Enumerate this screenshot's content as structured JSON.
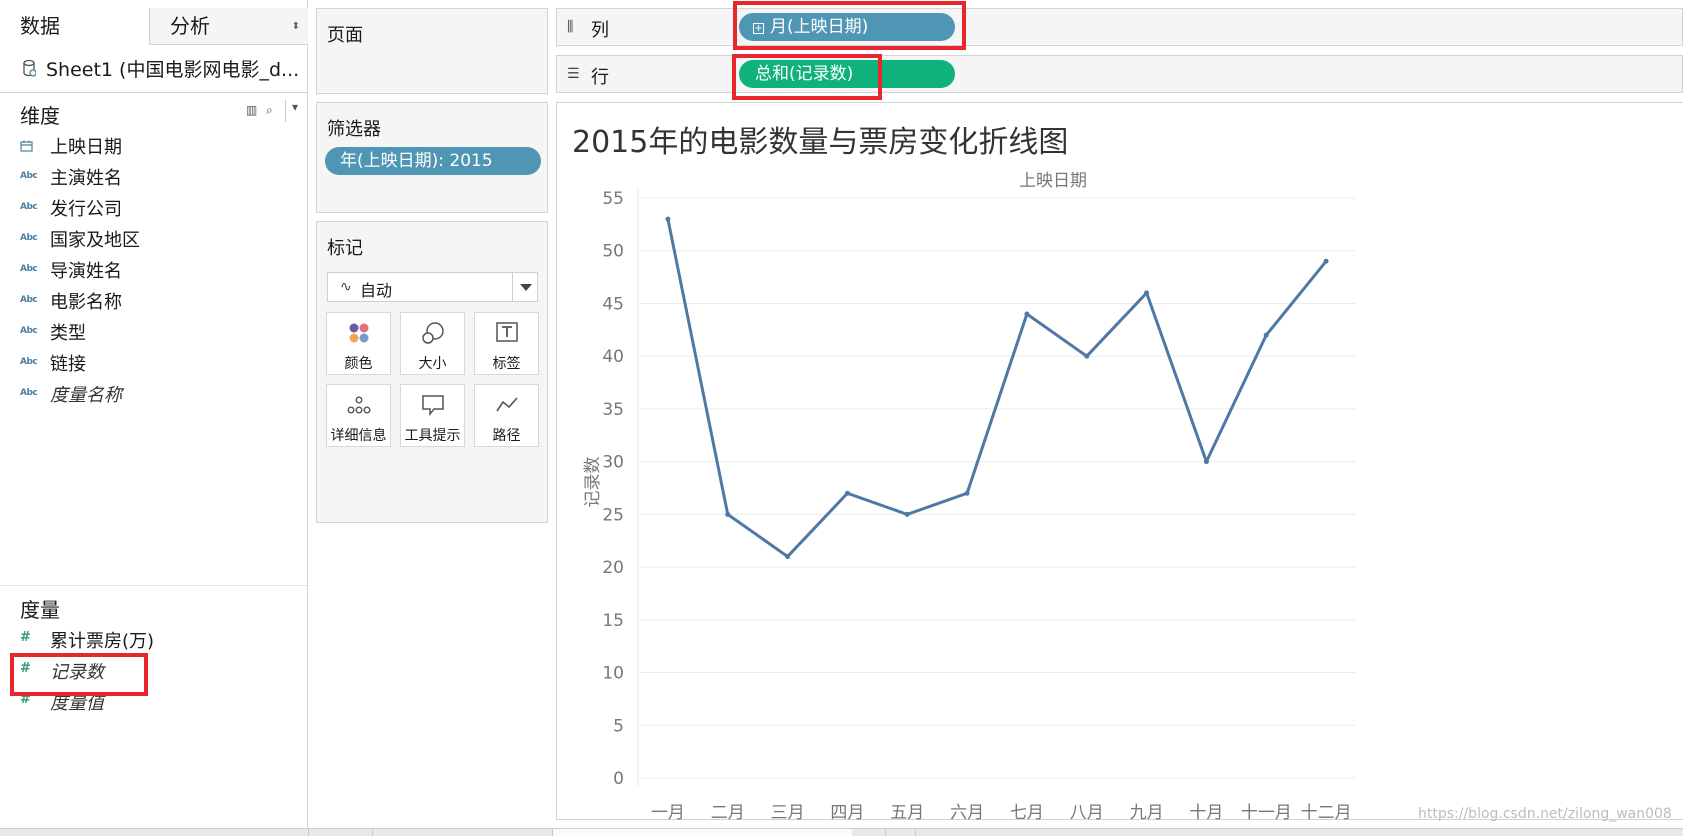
{
  "left_pane": {
    "tabs": {
      "data": "数据",
      "analysis": "分析"
    },
    "datasource": "Sheet1 (中国电影网电影_d...",
    "dimensions": {
      "title": "维度",
      "fields": [
        {
          "type_icon": "calendar-icon",
          "label": "上映日期",
          "italic": false
        },
        {
          "type_icon": "Abc",
          "label": "主演姓名",
          "italic": false
        },
        {
          "type_icon": "Abc",
          "label": "发行公司",
          "italic": false
        },
        {
          "type_icon": "Abc",
          "label": "国家及地区",
          "italic": false
        },
        {
          "type_icon": "Abc",
          "label": "导演姓名",
          "italic": false
        },
        {
          "type_icon": "Abc",
          "label": "电影名称",
          "italic": false
        },
        {
          "type_icon": "Abc",
          "label": "类型",
          "italic": false
        },
        {
          "type_icon": "Abc",
          "label": "链接",
          "italic": false
        },
        {
          "type_icon": "Abc",
          "label": "度量名称",
          "italic": true
        }
      ]
    },
    "measures": {
      "title": "度量",
      "fields": [
        {
          "type_icon": "#",
          "label": "累计票房(万)",
          "italic": false
        },
        {
          "type_icon": "#",
          "label": "记录数",
          "italic": true
        },
        {
          "type_icon": "#",
          "label": "度量值",
          "italic": true
        }
      ]
    }
  },
  "pages_card": {
    "title": "页面"
  },
  "filters_card": {
    "title": "筛选器",
    "pill": "年(上映日期): 2015"
  },
  "marks_card": {
    "title": "标记",
    "mark_type": "自动",
    "buttons": [
      {
        "label": "颜色",
        "icon": "color-icon"
      },
      {
        "label": "大小",
        "icon": "size-icon"
      },
      {
        "label": "标签",
        "icon": "label-icon"
      },
      {
        "label": "详细信息",
        "icon": "detail-icon"
      },
      {
        "label": "工具提示",
        "icon": "tooltip-icon"
      },
      {
        "label": "路径",
        "icon": "path-icon"
      }
    ]
  },
  "shelves": {
    "columns": {
      "label": "列",
      "icon": "columns-icon",
      "pill": "月(上映日期)",
      "pill_color": "#4e96b4"
    },
    "rows": {
      "label": "行",
      "icon": "rows-icon",
      "pill": "总和(记录数)",
      "pill_color": "#0fb27a"
    }
  },
  "highlight_color": "#e8262e",
  "chart_data": {
    "type": "line",
    "title": "2015年的电影数量与票房变化折线图",
    "xlabel": "上映日期",
    "ylabel": "记录数",
    "categories": [
      "一月",
      "二月",
      "三月",
      "四月",
      "五月",
      "六月",
      "七月",
      "八月",
      "九月",
      "十月",
      "十一月",
      "十二月"
    ],
    "series": [
      {
        "values": [
          53,
          25,
          21,
          27,
          25,
          27,
          44,
          40,
          46,
          30,
          42,
          49
        ],
        "color": "#4e79a7"
      }
    ],
    "ylim": [
      0,
      55
    ],
    "yticks": [
      0,
      5,
      10,
      15,
      20,
      25,
      30,
      35,
      40,
      45,
      50,
      55
    ],
    "grid": true
  },
  "watermark": "https://blog.csdn.net/zilong_wan008"
}
